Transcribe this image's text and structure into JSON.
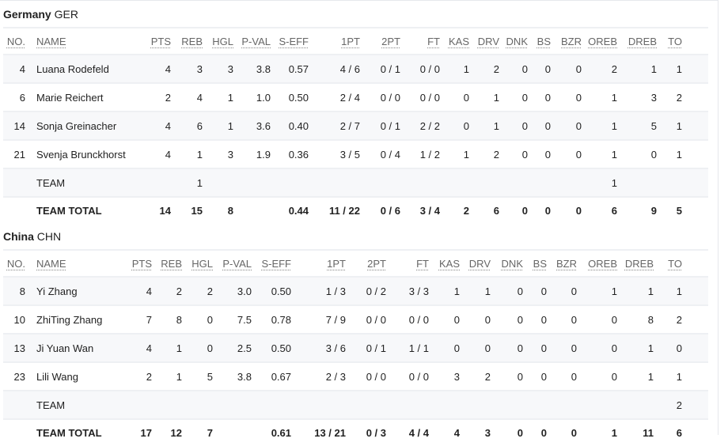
{
  "columns": [
    "NO.",
    "NAME",
    "PTS",
    "REB",
    "HGL",
    "P-VAL",
    "S-EFF",
    "1PT",
    "2PT",
    "FT",
    "KAS",
    "DRV",
    "DNK",
    "BS",
    "BZR",
    "OREB",
    "DREB",
    "TO"
  ],
  "teams": [
    {
      "name": "Germany",
      "code": "GER",
      "rows": [
        [
          "4",
          "Luana Rodefeld",
          "4",
          "3",
          "3",
          "3.8",
          "0.57",
          "4 / 6",
          "0 / 1",
          "0 / 0",
          "1",
          "2",
          "0",
          "0",
          "0",
          "2",
          "1",
          "1"
        ],
        [
          "6",
          "Marie Reichert",
          "2",
          "4",
          "1",
          "1.0",
          "0.50",
          "2 / 4",
          "0 / 0",
          "0 / 0",
          "0",
          "1",
          "0",
          "0",
          "0",
          "1",
          "3",
          "2"
        ],
        [
          "14",
          "Sonja Greinacher",
          "4",
          "6",
          "1",
          "3.6",
          "0.40",
          "2 / 7",
          "0 / 1",
          "2 / 2",
          "0",
          "1",
          "0",
          "0",
          "0",
          "1",
          "5",
          "1"
        ],
        [
          "21",
          "Svenja Brunckhorst",
          "4",
          "1",
          "3",
          "1.9",
          "0.36",
          "3 / 5",
          "0 / 4",
          "1 / 2",
          "1",
          "2",
          "0",
          "0",
          "0",
          "1",
          "0",
          "1"
        ],
        [
          "",
          "TEAM",
          "",
          "1",
          "",
          "",
          "",
          "",
          "",
          "",
          "",
          "",
          "",
          "",
          "",
          "1",
          "",
          ""
        ]
      ],
      "total": [
        "",
        "TEAM TOTAL",
        "14",
        "15",
        "8",
        "",
        "0.44",
        "11 / 22",
        "0 / 6",
        "3 / 4",
        "2",
        "6",
        "0",
        "0",
        "0",
        "6",
        "9",
        "5"
      ]
    },
    {
      "name": "China",
      "code": "CHN",
      "rows": [
        [
          "8",
          "Yi Zhang",
          "4",
          "2",
          "2",
          "3.0",
          "0.50",
          "1 / 3",
          "0 / 2",
          "3 / 3",
          "1",
          "1",
          "0",
          "0",
          "0",
          "1",
          "1",
          "1"
        ],
        [
          "10",
          "ZhiTing Zhang",
          "7",
          "8",
          "0",
          "7.5",
          "0.78",
          "7 / 9",
          "0 / 0",
          "0 / 0",
          "0",
          "0",
          "0",
          "0",
          "0",
          "0",
          "8",
          "2"
        ],
        [
          "13",
          "Ji Yuan Wan",
          "4",
          "1",
          "0",
          "2.5",
          "0.50",
          "3 / 6",
          "0 / 1",
          "1 / 1",
          "0",
          "0",
          "0",
          "0",
          "0",
          "0",
          "1",
          "0"
        ],
        [
          "23",
          "Lili Wang",
          "2",
          "1",
          "5",
          "3.8",
          "0.67",
          "2 / 3",
          "0 / 0",
          "0 / 0",
          "3",
          "2",
          "0",
          "0",
          "0",
          "0",
          "1",
          "1"
        ],
        [
          "",
          "TEAM",
          "",
          "",
          "",
          "",
          "",
          "",
          "",
          "",
          "",
          "",
          "",
          "",
          "",
          "",
          "",
          "2"
        ]
      ],
      "total": [
        "",
        "TEAM TOTAL",
        "17",
        "12",
        "7",
        "",
        "0.61",
        "13 / 21",
        "0 / 3",
        "4 / 4",
        "4",
        "3",
        "0",
        "0",
        "0",
        "1",
        "11",
        "6"
      ]
    }
  ]
}
